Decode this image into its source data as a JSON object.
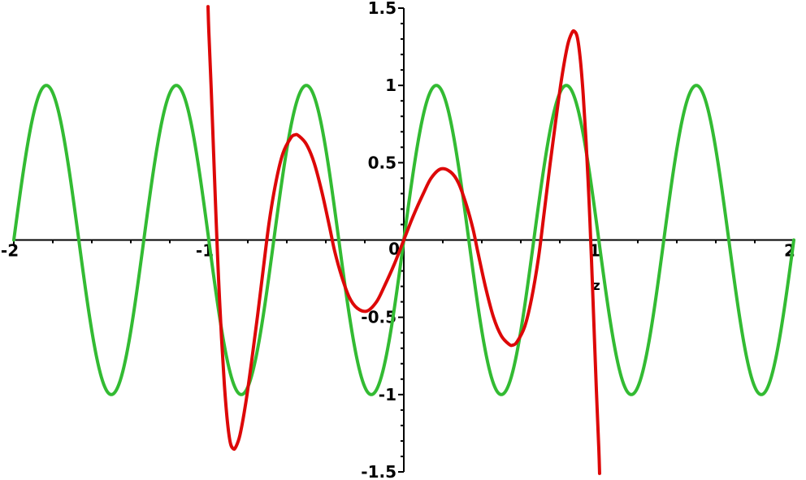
{
  "figure": {
    "background": "#ffffff",
    "axis_color": "#000000",
    "label_color": "#000000"
  },
  "chart_data": {
    "type": "line",
    "title": "",
    "x_axis": {
      "label": "z",
      "min": -2,
      "max": 2,
      "minor_tick_step": 0.2,
      "labeled_ticks": [
        {
          "value": -2,
          "text": "-2"
        },
        {
          "value": -1,
          "text": "-1"
        },
        {
          "value": 1,
          "text": "1"
        },
        {
          "value": 2,
          "text": "2"
        }
      ]
    },
    "y_axis": {
      "label": "",
      "min": -1.5,
      "max": 1.5,
      "minor_tick_step": 0.1,
      "labeled_ticks": [
        {
          "value": 1.5,
          "text": "1.5"
        },
        {
          "value": 1,
          "text": "1"
        },
        {
          "value": 0.5,
          "text": "0.5"
        },
        {
          "value": -0.5,
          "text": "-0.5"
        },
        {
          "value": -1,
          "text": "-1"
        },
        {
          "value": -1.5,
          "text": "-1.5"
        }
      ]
    },
    "origin_label": "0",
    "grid": false,
    "legend": null,
    "series": [
      {
        "name": "green-sine-curve",
        "color": "#33bb33",
        "line_width": 4,
        "kind": "sine",
        "expression": "sin(3*pi*z)",
        "amplitude": 1,
        "cycles_per_unit": 1.5,
        "phase": 0,
        "domain": [
          -2,
          2
        ]
      },
      {
        "name": "red-oscillating-curve",
        "color": "#dd0808",
        "line_width": 4,
        "kind": "points",
        "points": [
          [
            -1.004,
            1.51
          ],
          [
            -1.0,
            1.35
          ],
          [
            -0.9875,
            0.97
          ],
          [
            -0.975,
            0.55
          ],
          [
            -0.9625,
            0.13
          ],
          [
            -0.95,
            -0.25
          ],
          [
            -0.935,
            -0.63
          ],
          [
            -0.92,
            -0.94
          ],
          [
            -0.905,
            -1.17
          ],
          [
            -0.89,
            -1.31
          ],
          [
            -0.875,
            -1.35
          ],
          [
            -0.862,
            -1.34
          ],
          [
            -0.84,
            -1.26
          ],
          [
            -0.81,
            -1.05
          ],
          [
            -0.78,
            -0.78
          ],
          [
            -0.75,
            -0.49
          ],
          [
            -0.72,
            -0.18
          ],
          [
            -0.69,
            0.12
          ],
          [
            -0.655,
            0.38
          ],
          [
            -0.62,
            0.56
          ],
          [
            -0.58,
            0.66
          ],
          [
            -0.558,
            0.68
          ],
          [
            -0.54,
            0.675
          ],
          [
            -0.5,
            0.62
          ],
          [
            -0.46,
            0.5
          ],
          [
            -0.42,
            0.31
          ],
          [
            -0.38,
            0.08
          ],
          [
            -0.355,
            -0.07
          ],
          [
            -0.32,
            -0.23
          ],
          [
            -0.28,
            -0.37
          ],
          [
            -0.24,
            -0.44
          ],
          [
            -0.19,
            -0.46
          ],
          [
            -0.14,
            -0.4
          ],
          [
            -0.1,
            -0.3
          ],
          [
            -0.05,
            -0.16
          ],
          [
            0,
            0
          ],
          [
            0.05,
            0.16
          ],
          [
            0.1,
            0.3
          ],
          [
            0.14,
            0.4
          ],
          [
            0.19,
            0.46
          ],
          [
            0.24,
            0.44
          ],
          [
            0.28,
            0.37
          ],
          [
            0.32,
            0.23
          ],
          [
            0.355,
            0.07
          ],
          [
            0.38,
            -0.08
          ],
          [
            0.42,
            -0.31
          ],
          [
            0.46,
            -0.5
          ],
          [
            0.5,
            -0.62
          ],
          [
            0.54,
            -0.675
          ],
          [
            0.558,
            -0.68
          ],
          [
            0.58,
            -0.66
          ],
          [
            0.62,
            -0.56
          ],
          [
            0.655,
            -0.38
          ],
          [
            0.69,
            -0.12
          ],
          [
            0.72,
            0.18
          ],
          [
            0.75,
            0.49
          ],
          [
            0.78,
            0.78
          ],
          [
            0.81,
            1.05
          ],
          [
            0.84,
            1.26
          ],
          [
            0.862,
            1.34
          ],
          [
            0.875,
            1.35
          ],
          [
            0.89,
            1.31
          ],
          [
            0.905,
            1.17
          ],
          [
            0.92,
            0.94
          ],
          [
            0.935,
            0.63
          ],
          [
            0.95,
            0.25
          ],
          [
            0.9625,
            -0.13
          ],
          [
            0.975,
            -0.55
          ],
          [
            0.9875,
            -0.97
          ],
          [
            1.0,
            -1.35
          ],
          [
            1.004,
            -1.51
          ]
        ]
      }
    ]
  }
}
